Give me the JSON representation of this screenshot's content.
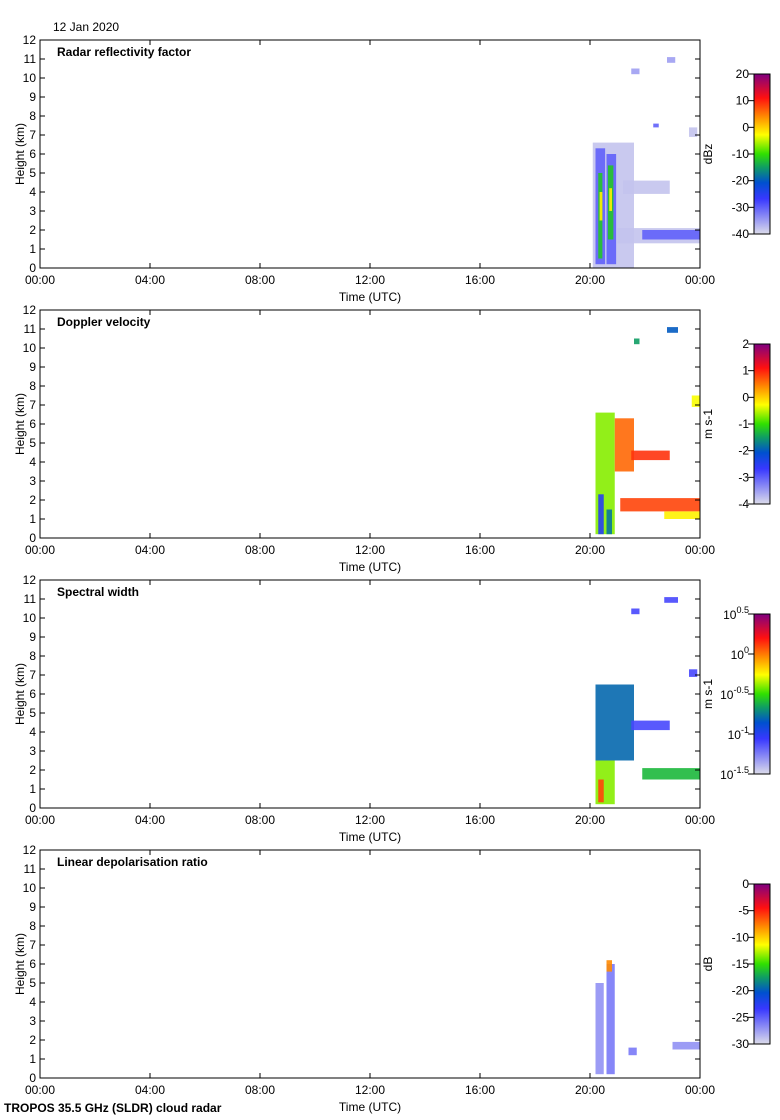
{
  "date": "12 Jan 2020",
  "footer": "TROPOS 35.5 GHz (SLDR) cloud radar",
  "chart_data": [
    {
      "type": "heatmap",
      "title": "Radar reflectivity factor",
      "xlabel": "Time (UTC)",
      "ylabel": "Height (km)",
      "xlim": [
        0,
        24
      ],
      "ylim": [
        0,
        12
      ],
      "xticks": [
        "00:00",
        "04:00",
        "08:00",
        "12:00",
        "16:00",
        "20:00",
        "00:00"
      ],
      "yticks": [
        "0",
        "1",
        "2",
        "3",
        "4",
        "5",
        "6",
        "7",
        "8",
        "9",
        "10",
        "11",
        "12"
      ],
      "colorbar": {
        "label": "dBz",
        "ticks": [
          "20",
          "10",
          "0",
          "-10",
          "-20",
          "-30",
          "-40"
        ],
        "range": [
          -40,
          20
        ]
      },
      "echoes": [
        [
          20.1,
          21.6,
          0,
          6.6,
          -38
        ],
        [
          21.2,
          22.9,
          3.9,
          4.6,
          -38
        ],
        [
          21.0,
          24,
          1.3,
          2.1,
          -38
        ],
        [
          20.2,
          20.55,
          0.2,
          6.3,
          -30
        ],
        [
          20.3,
          20.45,
          0.5,
          5.0,
          -12
        ],
        [
          20.35,
          20.45,
          2.5,
          4.0,
          -2
        ],
        [
          20.6,
          20.95,
          0.2,
          6.0,
          -30
        ],
        [
          20.65,
          20.85,
          1.5,
          5.4,
          -12
        ],
        [
          20.7,
          20.8,
          3.0,
          4.2,
          -2
        ],
        [
          21.9,
          24,
          1.5,
          2.0,
          -30
        ],
        [
          22.3,
          22.5,
          7.4,
          7.6,
          -30
        ],
        [
          22.8,
          23.1,
          10.8,
          11.1,
          -35
        ],
        [
          21.5,
          21.8,
          10.2,
          10.5,
          -35
        ],
        [
          23.6,
          23.9,
          6.9,
          7.4,
          -38
        ]
      ]
    },
    {
      "type": "heatmap",
      "title": "Doppler velocity",
      "xlabel": "Time (UTC)",
      "ylabel": "Height (km)",
      "xlim": [
        0,
        24
      ],
      "ylim": [
        0,
        12
      ],
      "xticks": [
        "00:00",
        "04:00",
        "08:00",
        "12:00",
        "16:00",
        "20:00",
        "00:00"
      ],
      "yticks": [
        "0",
        "1",
        "2",
        "3",
        "4",
        "5",
        "6",
        "7",
        "8",
        "9",
        "10",
        "11",
        "12"
      ],
      "colorbar": {
        "label": "m s-1",
        "ticks": [
          "2",
          "1",
          "0",
          "-1",
          "-2",
          "-3",
          "-4"
        ],
        "range": [
          -4,
          2
        ]
      },
      "echoes": [
        [
          20.2,
          20.9,
          0.2,
          6.6,
          -0.7
        ],
        [
          20.9,
          21.6,
          3.5,
          6.3,
          0.6
        ],
        [
          21.5,
          22.9,
          4.1,
          4.6,
          0.9
        ],
        [
          20.3,
          20.5,
          0.2,
          2.3,
          -2.5
        ],
        [
          20.6,
          20.8,
          0.2,
          1.5,
          -1.8
        ],
        [
          21.1,
          24,
          1.4,
          2.1,
          0.8
        ],
        [
          22.7,
          24,
          1.0,
          1.4,
          -0.2
        ],
        [
          23.7,
          24,
          6.9,
          7.5,
          -0.3
        ],
        [
          22.8,
          23.2,
          10.8,
          11.1,
          -2
        ],
        [
          21.6,
          21.8,
          10.2,
          10.5,
          -1.5
        ]
      ]
    },
    {
      "type": "heatmap",
      "title": "Spectral width",
      "xlabel": "Time (UTC)",
      "ylabel": "Height (km)",
      "xlim": [
        0,
        24
      ],
      "ylim": [
        0,
        12
      ],
      "xticks": [
        "00:00",
        "04:00",
        "08:00",
        "12:00",
        "16:00",
        "20:00",
        "00:00"
      ],
      "yticks": [
        "0",
        "1",
        "2",
        "3",
        "4",
        "5",
        "6",
        "7",
        "8",
        "9",
        "10",
        "11",
        "12"
      ],
      "colorbar": {
        "label": "m s-1",
        "ticks": [
          "10^0.5",
          "10^0",
          "10^-0.5",
          "10^-1",
          "10^-1.5"
        ],
        "range": [
          -1.5,
          0.5
        ]
      },
      "echoes": [
        [
          20.2,
          21.6,
          2.5,
          6.5,
          -0.8
        ],
        [
          20.2,
          20.9,
          0.2,
          2.5,
          -0.4
        ],
        [
          20.3,
          20.5,
          0.3,
          1.5,
          0.1
        ],
        [
          21.5,
          22.9,
          4.1,
          4.6,
          -1.1
        ],
        [
          21.9,
          24,
          1.5,
          2.1,
          -0.6
        ],
        [
          22.7,
          23.2,
          10.8,
          11.1,
          -1.1
        ],
        [
          23.6,
          23.9,
          6.9,
          7.3,
          -1.1
        ],
        [
          21.5,
          21.8,
          10.2,
          10.5,
          -1.1
        ]
      ]
    },
    {
      "type": "heatmap",
      "title": "Linear depolarisation ratio",
      "xlabel": "Time (UTC)",
      "ylabel": "Height (km)",
      "xlim": [
        0,
        24
      ],
      "ylim": [
        0,
        12
      ],
      "xticks": [
        "00:00",
        "04:00",
        "08:00",
        "12:00",
        "16:00",
        "20:00",
        "00:00"
      ],
      "yticks": [
        "0",
        "1",
        "2",
        "3",
        "4",
        "5",
        "6",
        "7",
        "8",
        "9",
        "10",
        "11",
        "12"
      ],
      "colorbar": {
        "label": "dB",
        "ticks": [
          "0",
          "-5",
          "-10",
          "-15",
          "-20",
          "-25",
          "-30"
        ],
        "range": [
          -30,
          0
        ]
      },
      "echoes": [
        [
          20.2,
          20.5,
          0.2,
          5.0,
          -27
        ],
        [
          20.6,
          20.9,
          0.2,
          6.0,
          -26
        ],
        [
          20.6,
          20.8,
          5.6,
          6.2,
          -8
        ],
        [
          21.4,
          21.7,
          1.2,
          1.6,
          -26
        ],
        [
          23.0,
          24,
          1.5,
          1.9,
          -27
        ]
      ]
    }
  ]
}
